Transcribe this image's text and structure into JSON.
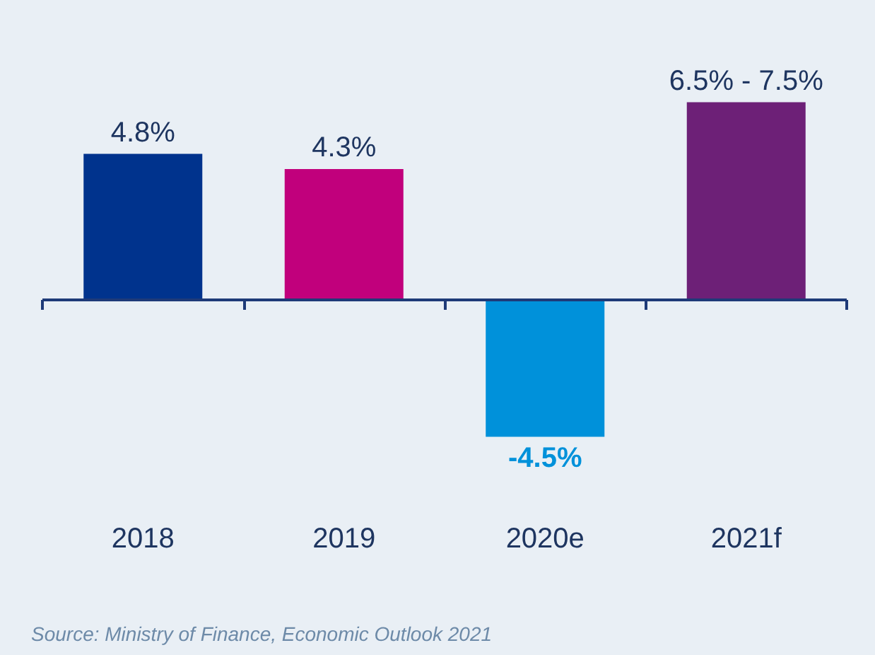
{
  "chart_data": {
    "type": "bar",
    "categories": [
      "2018",
      "2019",
      "2020e",
      "2021f"
    ],
    "values": [
      4.8,
      4.3,
      -4.5,
      6.5
    ],
    "colors": [
      "#00338d",
      "#c1007c",
      "#0091da",
      "#6d2077"
    ],
    "value_labels": [
      "4.8%",
      "4.3%",
      "-4.5%",
      "6.5% - 7.5%"
    ],
    "annotations": [
      "Source: Ministry of Finance, Economic Outlook 2021"
    ],
    "ref_lines": [
      {
        "axis": "y",
        "value": 0,
        "color": "#1e3a78"
      }
    ]
  }
}
